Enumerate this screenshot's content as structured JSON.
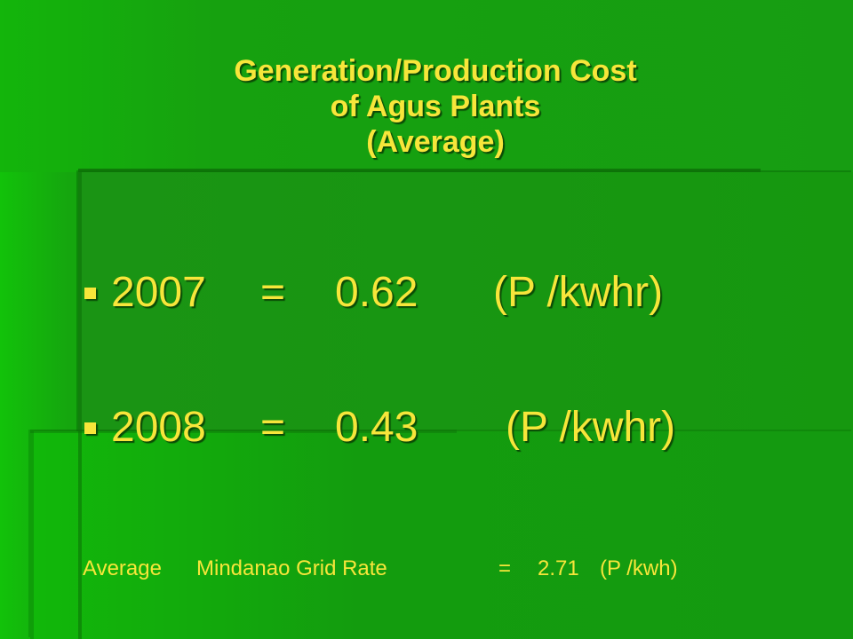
{
  "slide": {
    "title_lines": [
      "Generation/Production Cost",
      "of Agus Plants",
      "(Average)"
    ],
    "rows": [
      {
        "year": "2007",
        "eq": "=",
        "value": "0.62",
        "unit": "(P /kwhr)"
      },
      {
        "year": "2008",
        "eq": "=",
        "value": "0.43",
        "unit": "(P /kwhr)"
      }
    ],
    "footer": {
      "w1": "Average",
      "w2": "Mindanao Grid Rate",
      "eq": "=",
      "value": "2.71",
      "unit": "(P /kwh)"
    }
  },
  "colors": {
    "text": "#f7e63a",
    "background": "#179c12",
    "shadow": "#0a4a06"
  },
  "icons": {
    "bullet": "square-bullet-icon"
  }
}
